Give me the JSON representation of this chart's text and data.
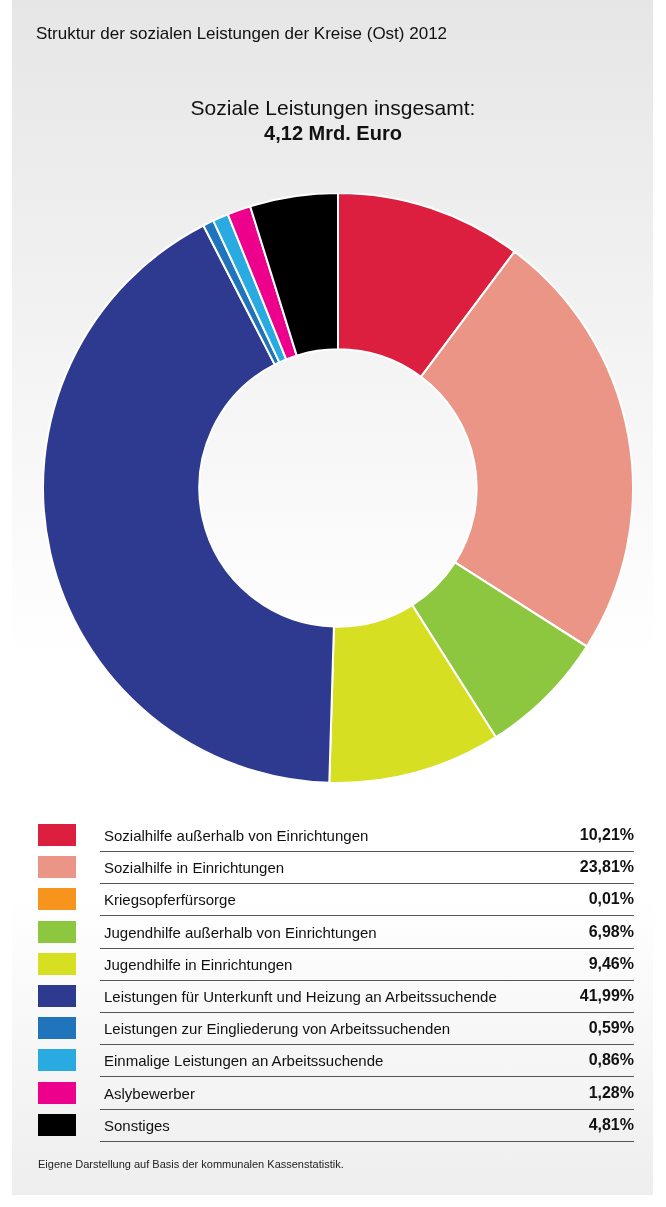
{
  "chart_data": {
    "type": "donut",
    "title": "Struktur der sozialen Leistungen der Kreise (Ost) 2012",
    "subtitle": "Soziale Leistungen insgesamt:",
    "annotations": [
      "4,12 Mrd. Euro",
      "Eigene Darstellung auf Basis der kommunalen Kassenstatistik."
    ],
    "categories": [
      "Sozialhilfe außerhalb von Einrichtungen",
      "Sozialhilfe in Einrichtungen",
      "Kriegsopferfürsorge",
      "Jugendhilfe außerhalb von Einrichtungen",
      "Jugendhilfe in Einrichtungen",
      "Leistungen für Unterkunft und Heizung an Arbeitssuchende",
      "Leistungen zur Eingliederung von Arbeitssuchenden",
      "Einmalige Leistungen an Arbeitssuchende",
      "Aslybewerber",
      "Sonstiges"
    ],
    "values": [
      10.21,
      23.81,
      0.01,
      6.98,
      9.46,
      41.99,
      0.59,
      0.86,
      1.28,
      4.81
    ],
    "value_labels": [
      "10,21%",
      "23,81%",
      "0,01%",
      "6,98%",
      "9,46%",
      "41,99%",
      "0,59%",
      "0,86%",
      "1,28%",
      "4,81%"
    ],
    "colors": [
      "#dc1f3f",
      "#ea9585",
      "#f7941d",
      "#8dc63f",
      "#d7df23",
      "#2e3a8f",
      "#1f74bb",
      "#29abe2",
      "#ec008c",
      "#000000"
    ],
    "legend": "bottom"
  }
}
